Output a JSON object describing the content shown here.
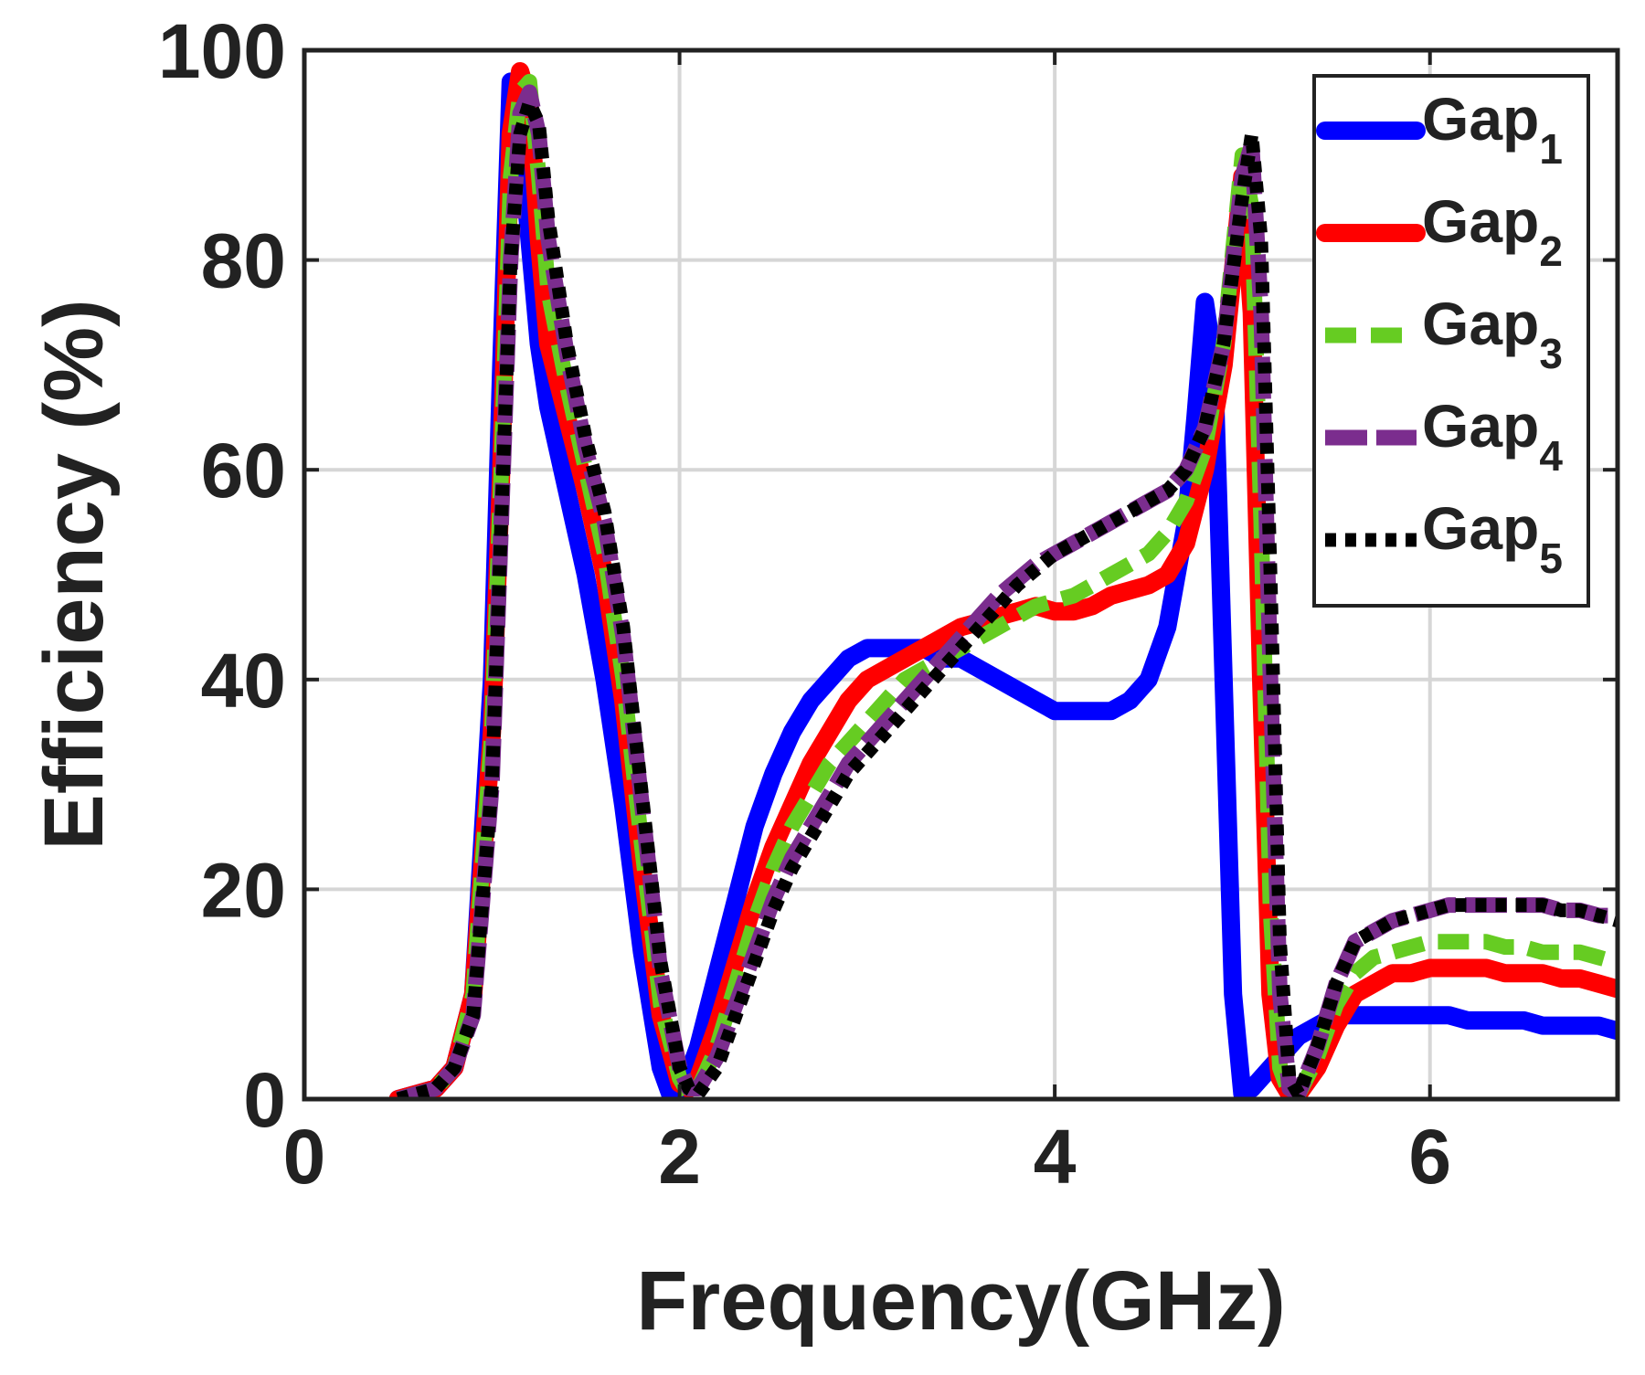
{
  "chart_data": {
    "type": "line",
    "title": "",
    "xlabel": "Frequency(GHz)",
    "ylabel": "Efficiency (%)",
    "xlim": [
      0,
      7
    ],
    "ylim": [
      0,
      100
    ],
    "xticks": [
      0,
      2,
      4,
      6
    ],
    "yticks": [
      0,
      20,
      40,
      60,
      80,
      100
    ],
    "xtick_labels": [
      "0",
      "2",
      "4",
      "6"
    ],
    "ytick_labels": [
      "0",
      "20",
      "40",
      "60",
      "80",
      "100"
    ],
    "grid": true,
    "legend_position": "top-right",
    "series": [
      {
        "name": "Gap",
        "sub": "1",
        "color": "#0000ff",
        "style": "solid-marker",
        "x": [
          0.5,
          0.6,
          0.7,
          0.8,
          0.9,
          1.0,
          1.05,
          1.1,
          1.15,
          1.2,
          1.25,
          1.3,
          1.4,
          1.5,
          1.6,
          1.7,
          1.8,
          1.9,
          1.95,
          2.0,
          2.1,
          2.2,
          2.3,
          2.4,
          2.5,
          2.6,
          2.7,
          2.8,
          2.9,
          3.0,
          3.1,
          3.2,
          3.3,
          3.4,
          3.5,
          3.6,
          3.7,
          3.8,
          3.9,
          4.0,
          4.1,
          4.2,
          4.3,
          4.4,
          4.5,
          4.6,
          4.7,
          4.75,
          4.8,
          4.85,
          4.9,
          4.95,
          5.0,
          5.05,
          5.1,
          5.2,
          5.3,
          5.4,
          5.5,
          5.6,
          5.7,
          5.8,
          5.9,
          6.0,
          6.1,
          6.2,
          6.3,
          6.4,
          6.5,
          6.6,
          6.7,
          6.8,
          6.9,
          7.0
        ],
        "y": [
          0,
          0.5,
          1,
          3,
          10,
          40,
          70,
          97,
          92,
          82,
          72,
          66,
          58,
          50,
          40,
          28,
          14,
          3,
          0.5,
          0,
          5,
          12,
          19,
          26,
          31,
          35,
          38,
          40,
          42,
          43,
          43,
          43,
          43,
          42,
          42,
          41,
          40,
          39,
          38,
          37,
          37,
          37,
          37,
          38,
          40,
          45,
          55,
          65,
          76,
          70,
          40,
          10,
          0.5,
          1,
          2,
          4,
          6,
          7,
          8,
          8,
          8,
          8,
          8,
          8,
          8,
          7.5,
          7.5,
          7.5,
          7.5,
          7,
          7,
          7,
          7,
          6.5
        ]
      },
      {
        "name": "Gap",
        "sub": "2",
        "color": "#ff0000",
        "style": "solid-marker",
        "x": [
          0.5,
          0.6,
          0.7,
          0.8,
          0.9,
          1.0,
          1.05,
          1.1,
          1.15,
          1.2,
          1.25,
          1.3,
          1.4,
          1.5,
          1.6,
          1.7,
          1.8,
          1.9,
          2.0,
          2.05,
          2.1,
          2.2,
          2.3,
          2.4,
          2.5,
          2.6,
          2.7,
          2.8,
          2.9,
          3.0,
          3.1,
          3.2,
          3.3,
          3.4,
          3.5,
          3.6,
          3.7,
          3.8,
          3.9,
          4.0,
          4.1,
          4.2,
          4.3,
          4.4,
          4.5,
          4.6,
          4.7,
          4.8,
          4.9,
          5.0,
          5.05,
          5.1,
          5.15,
          5.2,
          5.25,
          5.3,
          5.4,
          5.5,
          5.6,
          5.7,
          5.8,
          5.9,
          6.0,
          6.1,
          6.2,
          6.3,
          6.4,
          6.5,
          6.6,
          6.7,
          6.8,
          6.9,
          7.0
        ],
        "y": [
          0,
          0.5,
          1,
          3,
          10,
          35,
          60,
          92,
          98,
          95,
          82,
          72,
          65,
          58,
          50,
          38,
          22,
          8,
          1.5,
          1,
          2,
          7,
          13,
          19,
          24,
          28,
          32,
          35,
          38,
          40,
          41,
          42,
          43,
          44,
          45,
          45.5,
          46,
          46.5,
          47,
          46.5,
          46.5,
          47,
          48,
          48.5,
          49,
          50,
          53,
          60,
          70,
          88,
          75,
          40,
          10,
          2,
          0.5,
          0.5,
          3,
          7,
          10,
          11,
          12,
          12,
          12.5,
          12.5,
          12.5,
          12.5,
          12,
          12,
          12,
          11.5,
          11.5,
          11,
          10.5
        ]
      },
      {
        "name": "Gap",
        "sub": "3",
        "color": "#66cc22",
        "style": "dashed",
        "x": [
          0.5,
          0.6,
          0.7,
          0.8,
          0.9,
          1.0,
          1.05,
          1.1,
          1.15,
          1.2,
          1.25,
          1.3,
          1.4,
          1.5,
          1.6,
          1.7,
          1.8,
          1.9,
          2.0,
          2.05,
          2.1,
          2.2,
          2.3,
          2.4,
          2.5,
          2.6,
          2.7,
          2.8,
          2.9,
          3.0,
          3.1,
          3.2,
          3.3,
          3.4,
          3.5,
          3.6,
          3.7,
          3.8,
          3.9,
          4.0,
          4.1,
          4.2,
          4.3,
          4.4,
          4.5,
          4.6,
          4.7,
          4.8,
          4.9,
          5.0,
          5.05,
          5.1,
          5.15,
          5.2,
          5.25,
          5.3,
          5.4,
          5.5,
          5.6,
          5.7,
          5.8,
          5.9,
          6.0,
          6.1,
          6.2,
          6.3,
          6.4,
          6.5,
          6.6,
          6.7,
          6.8,
          6.9,
          7.0
        ],
        "y": [
          0,
          0.5,
          1,
          3,
          10,
          35,
          60,
          88,
          96,
          97,
          88,
          77,
          68,
          60,
          52,
          40,
          24,
          9,
          2,
          0.5,
          1,
          5,
          11,
          17,
          22,
          26,
          29,
          32,
          34,
          36,
          38,
          40,
          41,
          42,
          43,
          44,
          45,
          46,
          47,
          47.5,
          48,
          49,
          50,
          51,
          52,
          54,
          57,
          62,
          72,
          90,
          85,
          55,
          18,
          3,
          0.5,
          0.5,
          4,
          9,
          12,
          13.5,
          14,
          14.5,
          15,
          15,
          15,
          15,
          14.5,
          14.5,
          14,
          14,
          14,
          13.5,
          13
        ]
      },
      {
        "name": "Gap",
        "sub": "4",
        "color": "#7b2d8e",
        "style": "long-dashed",
        "x": [
          0.5,
          0.6,
          0.7,
          0.8,
          0.9,
          1.0,
          1.05,
          1.1,
          1.15,
          1.2,
          1.25,
          1.3,
          1.4,
          1.5,
          1.6,
          1.7,
          1.8,
          1.9,
          2.0,
          2.05,
          2.1,
          2.2,
          2.3,
          2.4,
          2.5,
          2.6,
          2.7,
          2.8,
          2.9,
          3.0,
          3.1,
          3.2,
          3.3,
          3.4,
          3.5,
          3.6,
          3.7,
          3.8,
          3.9,
          4.0,
          4.1,
          4.2,
          4.3,
          4.4,
          4.5,
          4.6,
          4.7,
          4.8,
          4.9,
          5.0,
          5.05,
          5.1,
          5.15,
          5.2,
          5.25,
          5.3,
          5.4,
          5.5,
          5.6,
          5.7,
          5.8,
          5.9,
          6.0,
          6.1,
          6.2,
          6.3,
          6.4,
          6.5,
          6.6,
          6.7,
          6.8,
          6.9,
          7.0
        ],
        "y": [
          0,
          0.5,
          1,
          3,
          8,
          30,
          55,
          80,
          94,
          96,
          92,
          82,
          71,
          62,
          55,
          44,
          28,
          12,
          3,
          1,
          1,
          4,
          9,
          14,
          19,
          23,
          26,
          29,
          32,
          34,
          36,
          38,
          40,
          42,
          44,
          46,
          48,
          49.5,
          51,
          52,
          53,
          54,
          55,
          56,
          57,
          58,
          60,
          64,
          72,
          88,
          91,
          75,
          40,
          10,
          1,
          0.5,
          5,
          11,
          15,
          16,
          17,
          17.5,
          18,
          18.5,
          18.5,
          18.5,
          18.5,
          18.5,
          18.5,
          18,
          18,
          17.5,
          17.5
        ]
      },
      {
        "name": "Gap",
        "sub": "5",
        "color": "#000000",
        "style": "dotted",
        "x": [
          0.5,
          0.6,
          0.7,
          0.8,
          0.9,
          1.0,
          1.05,
          1.1,
          1.15,
          1.2,
          1.25,
          1.3,
          1.4,
          1.5,
          1.6,
          1.7,
          1.8,
          1.9,
          2.0,
          2.05,
          2.1,
          2.2,
          2.3,
          2.4,
          2.5,
          2.6,
          2.7,
          2.8,
          2.9,
          3.0,
          3.1,
          3.2,
          3.3,
          3.4,
          3.5,
          3.6,
          3.7,
          3.8,
          3.9,
          4.0,
          4.1,
          4.2,
          4.3,
          4.4,
          4.5,
          4.6,
          4.7,
          4.8,
          4.9,
          5.0,
          5.05,
          5.1,
          5.15,
          5.2,
          5.25,
          5.3,
          5.4,
          5.5,
          5.6,
          5.7,
          5.8,
          5.9,
          6.0,
          6.1,
          6.2,
          6.3,
          6.4,
          6.5,
          6.6,
          6.7,
          6.8,
          6.9,
          7.0
        ],
        "y": [
          0,
          0.5,
          1,
          3,
          8,
          30,
          55,
          80,
          92,
          95,
          93,
          84,
          72,
          63,
          56,
          45,
          29,
          13,
          3,
          1,
          0.5,
          3,
          8,
          13,
          18,
          22,
          25,
          28,
          31,
          33,
          35,
          37,
          39,
          41,
          43,
          45,
          47,
          49,
          50.5,
          52,
          53,
          54,
          55,
          56,
          57,
          58,
          60,
          64,
          72,
          86,
          92,
          82,
          50,
          15,
          2,
          0.5,
          5,
          11,
          15,
          16,
          17,
          17.5,
          18,
          18.5,
          18.5,
          18.5,
          18.5,
          18.5,
          18.5,
          18,
          18,
          17.5,
          17
        ]
      }
    ]
  }
}
